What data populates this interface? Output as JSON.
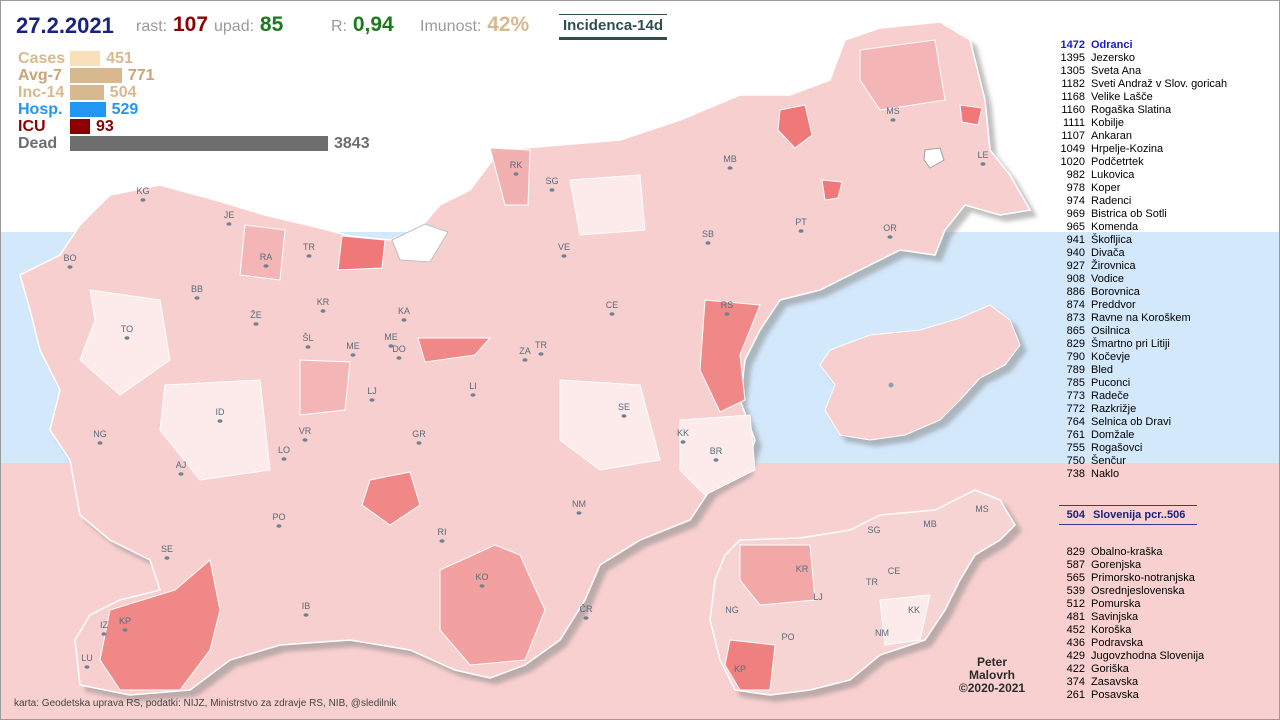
{
  "header": {
    "date": "27.2.2021",
    "rast_label": "rast:",
    "rast_value": "107",
    "upad_label": "upad:",
    "upad_value": "85",
    "r_label": "R:",
    "r_value": "0,94",
    "imunost_label": "Imunost:",
    "imunost_value": "42%",
    "tab_label": "Incidenca-14d"
  },
  "stats": [
    {
      "name": "Cases",
      "value": "451",
      "color": "#f9e0b8",
      "label_color": "#d8b98f",
      "fraction": 0.117
    },
    {
      "name": "Avg-7",
      "value": "771",
      "color": "#d8b98f",
      "label_color": "#c9a479",
      "fraction": 0.201
    },
    {
      "name": "Inc-14",
      "value": "504",
      "color": "#d8b98f",
      "label_color": "#d8b98f",
      "fraction": 0.131
    },
    {
      "name": "Hosp.",
      "value": "529",
      "color": "#2196f3",
      "label_color": "#2196f3",
      "fraction": 0.138
    },
    {
      "name": "ICU",
      "value": "93",
      "color": "#8b0000",
      "label_color": "#8b0000",
      "fraction": 0.024
    },
    {
      "name": "Dead",
      "value": "3843",
      "color": "#6e6e6e",
      "label_color": "#6e6e6e",
      "fraction": 1.0
    }
  ],
  "ranking": [
    [
      "1472",
      "Odranci"
    ],
    [
      "1395",
      "Jezersko"
    ],
    [
      "1305",
      "Sveta Ana"
    ],
    [
      "1182",
      "Sveti Andraž v Slov. goricah"
    ],
    [
      "1168",
      "Velike Lašče"
    ],
    [
      "1160",
      "Rogaška Slatina"
    ],
    [
      "1111",
      "Kobilje"
    ],
    [
      "1107",
      "Ankaran"
    ],
    [
      "1049",
      "Hrpelje-Kozina"
    ],
    [
      "1020",
      "Podčetrtek"
    ],
    [
      "982",
      "Lukovica"
    ],
    [
      "978",
      "Koper"
    ],
    [
      "974",
      "Radenci"
    ],
    [
      "969",
      "Bistrica ob Sotli"
    ],
    [
      "965",
      "Komenda"
    ],
    [
      "941",
      "Škofljica"
    ],
    [
      "940",
      "Divača"
    ],
    [
      "927",
      "Žirovnica"
    ],
    [
      "908",
      "Vodice"
    ],
    [
      "886",
      "Borovnica"
    ],
    [
      "874",
      "Preddvor"
    ],
    [
      "873",
      "Ravne na Koroškem"
    ],
    [
      "865",
      "Osilnica"
    ],
    [
      "829",
      "Šmartno pri Litiji"
    ],
    [
      "790",
      "Kočevje"
    ],
    [
      "789",
      "Bled"
    ],
    [
      "785",
      "Puconci"
    ],
    [
      "773",
      "Radeče"
    ],
    [
      "772",
      "Razkrižje"
    ],
    [
      "764",
      "Selnica ob Dravi"
    ],
    [
      "761",
      "Domžale"
    ],
    [
      "755",
      "Rogašovci"
    ],
    [
      "750",
      "Šenčur"
    ],
    [
      "738",
      "Naklo"
    ]
  ],
  "slovenia": {
    "value": "504",
    "label": "Slovenija  pcr..506"
  },
  "regions": [
    [
      "829",
      "Obalno-kraška"
    ],
    [
      "587",
      "Gorenjska"
    ],
    [
      "565",
      "Primorsko-notranjska"
    ],
    [
      "539",
      "Osrednjeslovenska"
    ],
    [
      "512",
      "Pomurska"
    ],
    [
      "481",
      "Savinjska"
    ],
    [
      "452",
      "Koroška"
    ],
    [
      "436",
      "Podravska"
    ],
    [
      "429",
      "Jugovzhodna Slovenija"
    ],
    [
      "422",
      "Goriška"
    ],
    [
      "374",
      "Zasavska"
    ],
    [
      "261",
      "Posavska"
    ]
  ],
  "map_codes": [
    "KG",
    "JE",
    "RA",
    "TR",
    "RK",
    "SG",
    "MB",
    "MS",
    "LE",
    "BO",
    "BB",
    "ŽE",
    "KR",
    "KA",
    "VE",
    "SB",
    "PT",
    "OR",
    "TO",
    "ŠL",
    "ME",
    "MED",
    "DO",
    "CE",
    "RS",
    "ZA",
    "TR2",
    "LJ",
    "LI",
    "ID",
    "VR",
    "GR",
    "SE",
    "KK",
    "BR",
    "NG",
    "AJ",
    "LO",
    "NM",
    "PO",
    "RI",
    "SE2",
    "KO",
    "IB",
    "IZ",
    "KP",
    "LU",
    "ČR"
  ],
  "map_code_labels": {
    "TR2": "TR",
    "MED": "ME",
    "SE2": "SE"
  },
  "small_map_codes": [
    "MS",
    "SG",
    "MB",
    "KR",
    "CE",
    "TR",
    "LJ",
    "NG",
    "KK",
    "PO",
    "NM",
    "KP"
  ],
  "signature": {
    "line1": "Peter",
    "line2": "Malovrh",
    "line3": "©2020-2021"
  },
  "credit": "karta: Geodetska uprava RS,  podatki: NIJZ, Ministrstvo za zdravje RS, NIB, @sledilnik"
}
